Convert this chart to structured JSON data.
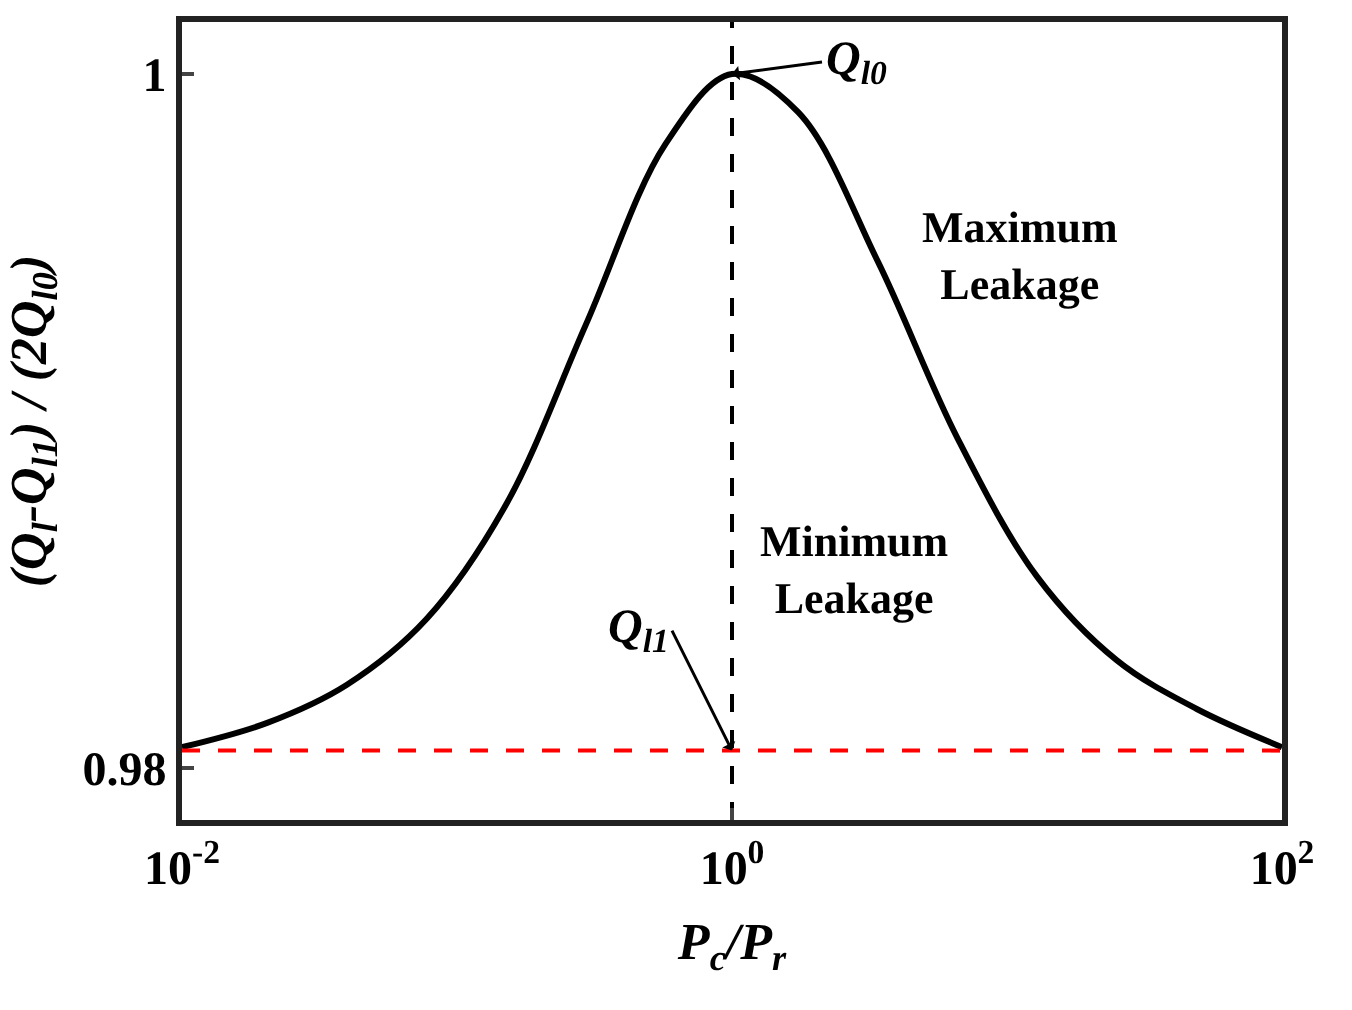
{
  "chart_data": {
    "type": "line",
    "xlabel": "P$_{c}$/P$_{r}$",
    "ylabel": "(Q$_{l}$-Q$_{l1}$) / (2Q$_{l0}$)",
    "x": [
      0.01,
      0.0204,
      0.0398,
      0.0776,
      0.151,
      0.295,
      0.575,
      1,
      1.74,
      3.39,
      6.61,
      12.9,
      25.1,
      49.0,
      100
    ],
    "series": [
      {
        "color": "#000000",
        "values": [
          0.9806,
          0.9813,
          0.9824,
          0.9843,
          0.9876,
          0.9928,
          0.998,
          1.0,
          0.9989,
          0.9946,
          0.9895,
          0.9855,
          0.9831,
          0.9817,
          0.9806
        ]
      }
    ],
    "xlim": [
      0.01,
      100
    ],
    "ylim": [
      0.9785,
      1.0015
    ],
    "xticks": [
      {
        "value": 0.01,
        "label": "10$^{-2}$"
      },
      {
        "value": 1,
        "label": "10$^{0}$"
      },
      {
        "value": 100,
        "label": "10$^{2}$"
      }
    ],
    "yticks": [
      0.98,
      1
    ],
    "log": "x",
    "marker": "none",
    "line_style": "solid",
    "ref_lines": [
      {
        "axis": "x",
        "value": 1,
        "color": "#000000",
        "line_style": "dashed"
      },
      {
        "axis": "y",
        "value": 0.9805,
        "color": "#ff0000",
        "line_style": "dashed"
      }
    ],
    "annotations": [
      {
        "text": "Q$_{l0}$",
        "x": 1,
        "y": 1.0
      },
      "Maximum\nLeakage",
      {
        "text": "Q$_{l1}$",
        "x": 1,
        "y": 0.9805
      },
      "Minimum\nLeakage"
    ]
  }
}
